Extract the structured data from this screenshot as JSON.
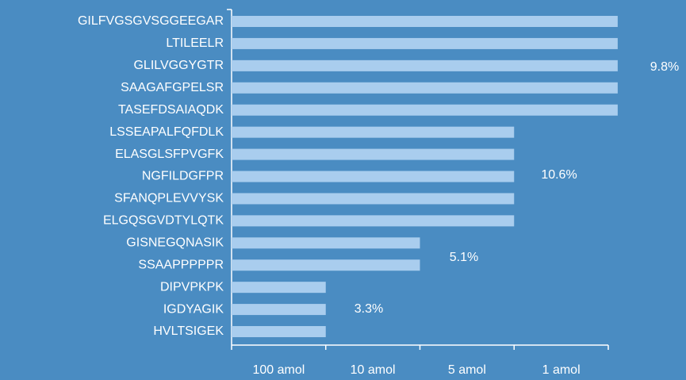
{
  "chart_data": {
    "type": "hbar",
    "categories": [
      "GILFVGSGVSGGEEGAR",
      "LTILEELR",
      "GLILVGGYGTR",
      "SAAGAFGPELSR",
      "TASEFDSAIAQDK",
      "LSSEAPALFQFDLK",
      "ELASGLSFPVGFK",
      "NGFILDGFPR",
      "SFANQPLEVVYSK",
      "ELGQSGVDTYLQTK",
      "GISNEGQNASIK",
      "SSAAPPPPPR",
      "DIPVPKPK",
      "IGDYAGIK",
      "HVLTSIGEK"
    ],
    "values": [
      4.1,
      4.1,
      4.1,
      4.1,
      4.1,
      3,
      3,
      3,
      3,
      3,
      2,
      2,
      1,
      1,
      1
    ],
    "color": "#a9cdee",
    "xlim": [
      0,
      4
    ],
    "xticks": [
      0,
      1,
      2,
      3,
      4
    ],
    "xlabels": [
      "100 amol",
      "10 amol",
      "5 amol",
      "1 amol"
    ],
    "annotations": [
      "9.8%",
      "10.6%",
      "5.1%",
      "3.3%"
    ]
  }
}
